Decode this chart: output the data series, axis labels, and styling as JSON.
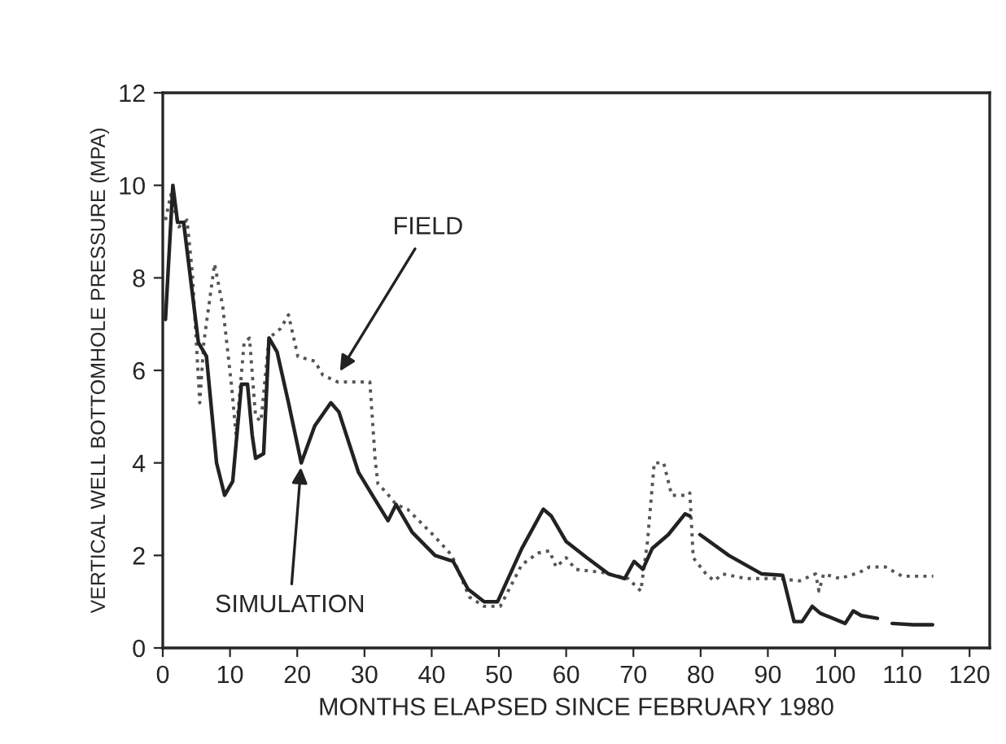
{
  "chart_data": {
    "type": "line",
    "xlabel": "MONTHS ELAPSED SINCE FEBRUARY 1980",
    "ylabel": "VERTICAL WELL BOTTOMHOLE PRESSURE (MPA)",
    "xlim": [
      0,
      123
    ],
    "xticks": [
      0,
      10,
      20,
      30,
      40,
      50,
      60,
      70,
      80,
      90,
      100,
      110,
      120
    ],
    "ylim": [
      0,
      12
    ],
    "yticks": [
      0,
      2,
      4,
      6,
      8,
      10,
      12
    ],
    "grid": false,
    "legend": false,
    "series": [
      {
        "color": "#555555",
        "line_style": "dotted",
        "x": [
          0.4,
          1.2,
          2.4,
          3.6,
          4.4,
          5.5,
          6.1,
          7.7,
          8.9,
          10.2,
          10.9,
          12.1,
          12.9,
          13.8,
          14.6,
          15.8,
          17.5,
          18.7,
          20.1,
          22.6,
          23.8,
          26.0,
          30.8,
          31.6,
          32.0,
          33.3,
          34.7,
          36.4,
          40.5,
          43.0,
          45.6,
          47.8,
          50.2,
          53.4,
          55.8,
          57.5,
          58.5,
          60.0,
          61.4,
          65.5,
          69.2,
          71.1,
          72.1,
          73.1,
          74.5,
          75.7,
          78.2,
          78.4,
          78.9,
          80.8,
          82.0,
          83.3,
          86.7,
          91.5,
          94.7,
          97.1,
          97.6,
          98.3,
          100.7,
          103.6,
          105.1,
          107.5,
          110.0,
          114.6
        ],
        "values": [
          9.25,
          9.8,
          9.1,
          9.25,
          8.1,
          5.3,
          6.6,
          8.3,
          7.4,
          5.7,
          4.6,
          6.6,
          6.7,
          5.0,
          4.9,
          6.7,
          6.9,
          7.2,
          6.3,
          6.2,
          5.9,
          5.75,
          5.75,
          4.05,
          3.55,
          3.35,
          3.1,
          3.0,
          2.4,
          2.0,
          1.1,
          0.9,
          0.9,
          1.8,
          2.05,
          2.1,
          1.75,
          1.95,
          1.7,
          1.63,
          1.5,
          1.23,
          2.3,
          4.0,
          4.0,
          3.3,
          3.3,
          3.35,
          1.95,
          1.6,
          1.45,
          1.6,
          1.5,
          1.5,
          1.45,
          1.6,
          1.23,
          1.6,
          1.5,
          1.63,
          1.75,
          1.75,
          1.55,
          1.55
        ]
      },
      {
        "color": "#222222",
        "line_style": "solid",
        "x": [
          0.4,
          1.5,
          2.2,
          3.1,
          5.3,
          6.5,
          8.0,
          9.2,
          10.4,
          11.7,
          12.6,
          13.3,
          13.8,
          15.0,
          15.8,
          17.0,
          18.7,
          20.6,
          22.6,
          25.0,
          26.2,
          29.1,
          31.6,
          33.5,
          34.7,
          37.1,
          40.5,
          43.2,
          45.4,
          47.8,
          49.8,
          53.4,
          56.6,
          57.8,
          60.0,
          63.1,
          66.3,
          68.7,
          70.1,
          71.4,
          72.8,
          75.2,
          77.7,
          78.4,
          79.1,
          79.9,
          84.2,
          89.1,
          92.2,
          93.9,
          95.1,
          96.6,
          97.8,
          101.5,
          102.7,
          103.9,
          106.3,
          107.4,
          108.5,
          111.6,
          114.5
        ],
        "values": [
          7.1,
          10.0,
          9.2,
          9.2,
          6.6,
          6.3,
          4.0,
          3.3,
          3.6,
          5.7,
          5.7,
          4.6,
          4.1,
          4.2,
          6.7,
          6.4,
          5.3,
          4.0,
          4.8,
          5.3,
          5.1,
          3.8,
          3.2,
          2.75,
          3.1,
          2.5,
          2.0,
          1.87,
          1.27,
          1.0,
          1.0,
          2.15,
          3.0,
          2.85,
          2.3,
          1.95,
          1.6,
          1.5,
          1.87,
          1.7,
          2.15,
          2.45,
          2.9,
          2.85,
          null,
          2.45,
          2.0,
          1.6,
          1.57,
          0.57,
          0.57,
          0.9,
          0.75,
          0.53,
          0.8,
          0.7,
          0.64,
          null,
          0.53,
          0.5,
          0.5
        ]
      }
    ],
    "annotations": [
      {
        "text": "FIELD",
        "x": 26.0,
        "y": 5.9
      },
      {
        "text": "SIMULATION",
        "x": 20.6,
        "y": 4.0
      }
    ]
  }
}
